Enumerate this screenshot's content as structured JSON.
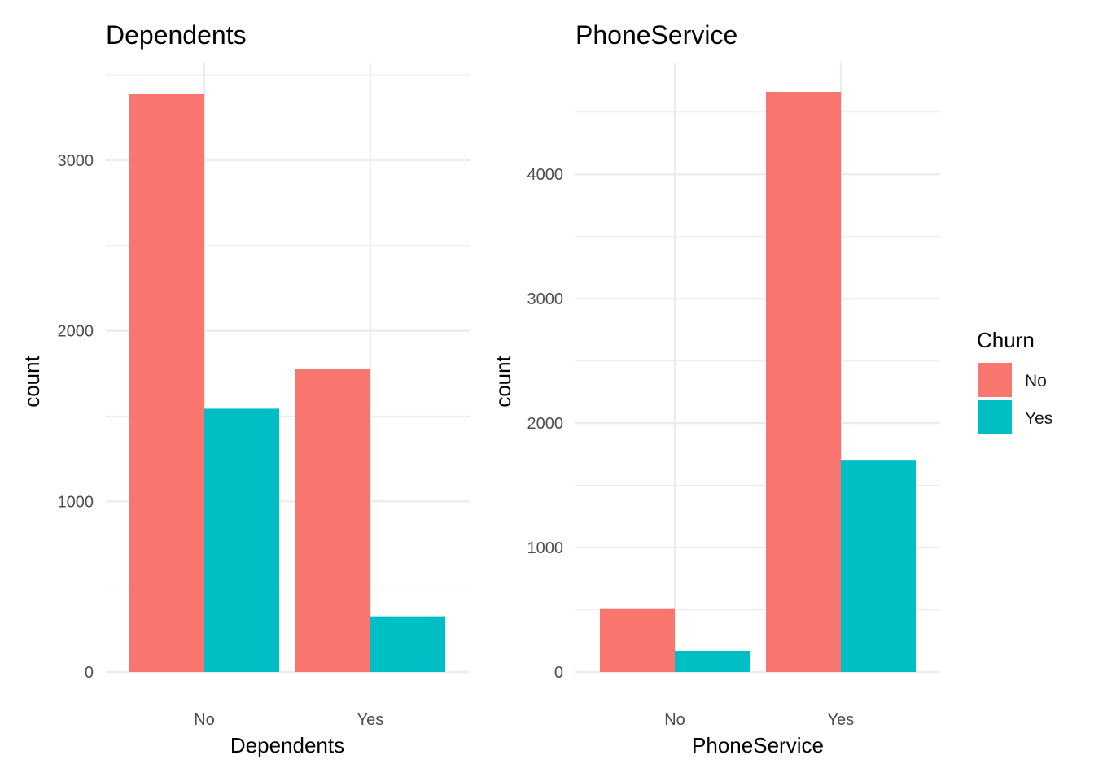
{
  "colors": {
    "No": "#F8766D",
    "Yes": "#00BFC4"
  },
  "legend": {
    "title": "Churn",
    "items": [
      {
        "label": "No",
        "color": "#F8766D"
      },
      {
        "label": "Yes",
        "color": "#00BFC4"
      }
    ],
    "position": "right"
  },
  "chart_data": [
    {
      "type": "bar",
      "title": "Dependents",
      "xlabel": "Dependents",
      "ylabel": "count",
      "categories": [
        "No",
        "Yes"
      ],
      "series": [
        {
          "name": "No",
          "values": [
            3390,
            1774
          ]
        },
        {
          "name": "Yes",
          "values": [
            1543,
            326
          ]
        }
      ],
      "ylim": [
        0,
        3400
      ],
      "yticks": [
        0,
        1000,
        2000,
        3000
      ],
      "grid": true
    },
    {
      "type": "bar",
      "title": "PhoneService",
      "xlabel": "PhoneService",
      "ylabel": "count",
      "categories": [
        "No",
        "Yes"
      ],
      "series": [
        {
          "name": "No",
          "values": [
            512,
            4662
          ]
        },
        {
          "name": "Yes",
          "values": [
            170,
            1699
          ]
        }
      ],
      "ylim": [
        0,
        4662
      ],
      "yticks": [
        0,
        1000,
        2000,
        3000,
        4000
      ],
      "grid": true
    }
  ]
}
